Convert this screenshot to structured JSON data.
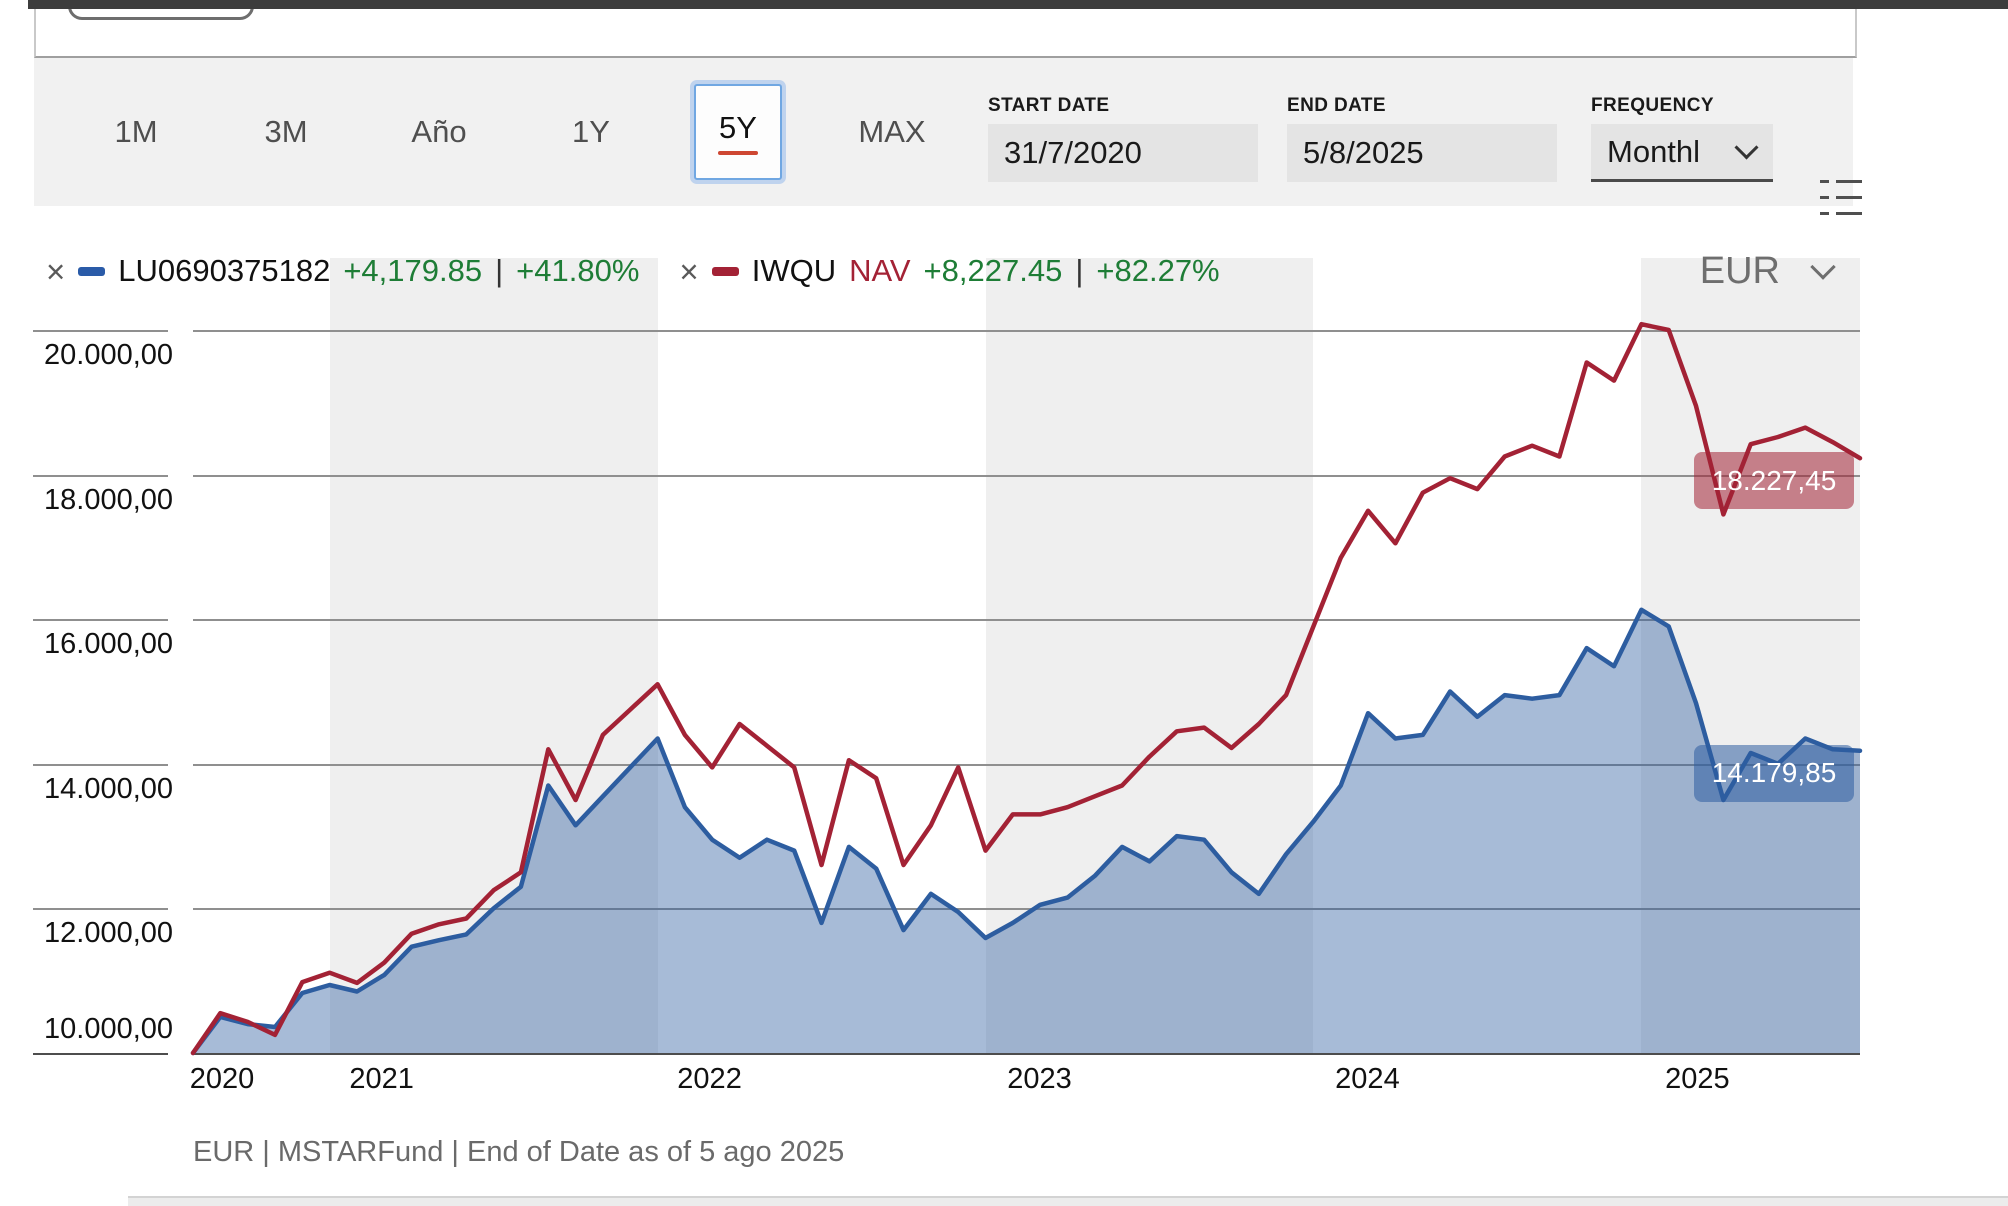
{
  "toolbar": {
    "ranges": [
      {
        "label": "1M",
        "selected": false
      },
      {
        "label": "3M",
        "selected": false
      },
      {
        "label": "Año",
        "selected": false
      },
      {
        "label": "1Y",
        "selected": false
      },
      {
        "label": "5Y",
        "selected": true
      },
      {
        "label": "MAX",
        "selected": false
      }
    ],
    "start_date": {
      "label": "START DATE",
      "value": "31/7/2020"
    },
    "end_date": {
      "label": "END DATE",
      "value": "5/8/2025"
    },
    "frequency": {
      "label": "FREQUENCY",
      "value": "Monthl"
    }
  },
  "legend": {
    "series": [
      {
        "id": "LU0690375182",
        "change": "+4,179.85",
        "pipe": "|",
        "percent": "+41.80%",
        "color": "#2a5ba8",
        "change_color": "#1e7d36"
      },
      {
        "id": "IWQU",
        "nav_label": "NAV",
        "nav_color": "#a32235",
        "change": "+8,227.45",
        "pipe": "|",
        "percent": "+82.27%",
        "color": "#a32235",
        "change_color": "#1e7d36"
      }
    ],
    "currency": "EUR"
  },
  "chart": {
    "y_ticks": [
      "20.000,00",
      "18.000,00",
      "16.000,00",
      "14.000,00",
      "12.000,00",
      "10.000,00"
    ],
    "x_ticks": [
      "2020",
      "2021",
      "2022",
      "2023",
      "2024",
      "2025"
    ],
    "badges": [
      {
        "text": "18.227,45",
        "bg": "rgba(163,34,53,0.55)"
      },
      {
        "text": "14.179,85",
        "bg": "rgba(45,93,160,0.55)"
      }
    ]
  },
  "chart_data": {
    "type": "line",
    "title": "",
    "xlabel": "",
    "ylabel": "",
    "ylim": [
      10000,
      21000
    ],
    "y_tick_values": [
      20000,
      18000,
      16000,
      14000,
      12000,
      10000
    ],
    "grid": true,
    "legend_position": "top",
    "shaded_year_bands": [
      "2021",
      "2023",
      "2025"
    ],
    "x": [
      "2020-07",
      "2020-08",
      "2020-09",
      "2020-10",
      "2020-11",
      "2020-12",
      "2021-01",
      "2021-02",
      "2021-03",
      "2021-04",
      "2021-05",
      "2021-06",
      "2021-07",
      "2021-08",
      "2021-09",
      "2021-10",
      "2021-11",
      "2021-12",
      "2022-01",
      "2022-02",
      "2022-03",
      "2022-04",
      "2022-05",
      "2022-06",
      "2022-07",
      "2022-08",
      "2022-09",
      "2022-10",
      "2022-11",
      "2022-12",
      "2023-01",
      "2023-02",
      "2023-03",
      "2023-04",
      "2023-05",
      "2023-06",
      "2023-07",
      "2023-08",
      "2023-09",
      "2023-10",
      "2023-11",
      "2023-12",
      "2024-01",
      "2024-02",
      "2024-03",
      "2024-04",
      "2024-05",
      "2024-06",
      "2024-07",
      "2024-08",
      "2024-09",
      "2024-10",
      "2024-11",
      "2024-12",
      "2025-01",
      "2025-02",
      "2025-03",
      "2025-04",
      "2025-05",
      "2025-06",
      "2025-07",
      "2025-08-05"
    ],
    "series": [
      {
        "name": "LU0690375182",
        "color": "#2d5da0",
        "fill": true,
        "fill_color": "rgba(45,93,160,0.42)",
        "values": [
          10000,
          10500,
          10400,
          10360,
          10830,
          10940,
          10850,
          11080,
          11470,
          11560,
          11640,
          12000,
          12300,
          13700,
          13150,
          13550,
          13950,
          14350,
          13400,
          12950,
          12700,
          12950,
          12800,
          11800,
          12850,
          12550,
          11700,
          12200,
          11950,
          11590,
          11800,
          12050,
          12150,
          12450,
          12850,
          12650,
          13000,
          12950,
          12500,
          12200,
          12750,
          13200,
          13700,
          14700,
          14350,
          14400,
          15000,
          14650,
          14950,
          14900,
          14950,
          15600,
          15350,
          16130,
          15900,
          14840,
          13500,
          14150,
          14000,
          14350,
          14200,
          14179.85
        ]
      },
      {
        "name": "IWQU NAV",
        "color": "#a32235",
        "fill": false,
        "values": [
          10000,
          10550,
          10430,
          10250,
          10980,
          11110,
          10970,
          11250,
          11650,
          11780,
          11860,
          12250,
          12500,
          14200,
          13500,
          14400,
          14750,
          15100,
          14400,
          13950,
          14550,
          14250,
          13950,
          12600,
          14050,
          13800,
          12600,
          13150,
          13950,
          12800,
          13300,
          13300,
          13400,
          13550,
          13700,
          14100,
          14450,
          14500,
          14220,
          14550,
          14950,
          15900,
          16850,
          17500,
          17050,
          17750,
          17950,
          17800,
          18250,
          18400,
          18250,
          19550,
          19300,
          20080,
          20000,
          18950,
          17450,
          18420,
          18520,
          18650,
          18450,
          18227.45
        ]
      }
    ]
  },
  "footer": {
    "text": "EUR | MSTARFund | End of Date as of 5 ago 2025"
  }
}
